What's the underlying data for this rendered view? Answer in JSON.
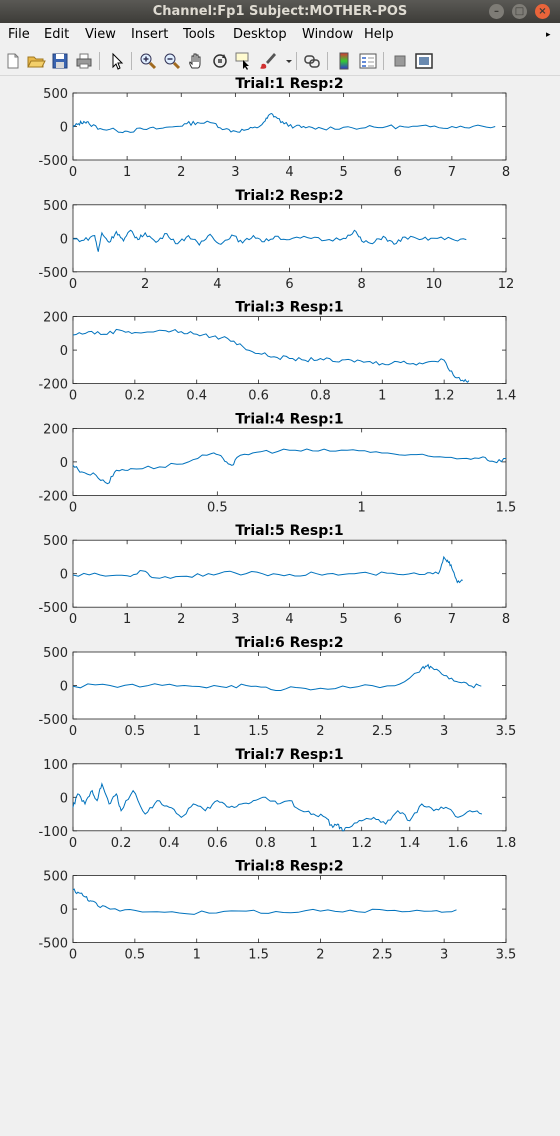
{
  "window": {
    "title": "Channel:Fp1 Subject:MOTHER-POS"
  },
  "menu": [
    "File",
    "Edit",
    "View",
    "Insert",
    "Tools",
    "Desktop",
    "Window",
    "Help"
  ],
  "toolbar_icons": [
    "new-figure-icon",
    "open-file-icon",
    "save-icon",
    "print-icon",
    "pointer-icon",
    "zoom-in-icon",
    "zoom-out-icon",
    "pan-hand-icon",
    "rotate-3d-icon",
    "data-cursor-icon",
    "brush-icon",
    "link-plot-icon",
    "colorbar-icon",
    "legend-icon",
    "hide-plot-tools-icon",
    "show-plot-tools-icon"
  ],
  "colors": {
    "line": "#0072bd",
    "axes_bg": "#ffffff",
    "figure_bg": "#f0f0f0"
  },
  "chart_data": [
    {
      "type": "line",
      "title": "Trial:1 Resp:2",
      "xlim": [
        0,
        8
      ],
      "ylim": [
        -500,
        500
      ],
      "xticks": [
        0,
        1,
        2,
        3,
        4,
        5,
        6,
        7,
        8
      ],
      "yticks": [
        500,
        0,
        -500
      ],
      "points": [
        [
          0,
          -10
        ],
        [
          0.1,
          40
        ],
        [
          0.2,
          75
        ],
        [
          0.3,
          40
        ],
        [
          0.5,
          -30
        ],
        [
          0.8,
          -60
        ],
        [
          1,
          -70
        ],
        [
          1.3,
          -40
        ],
        [
          1.6,
          -30
        ],
        [
          1.9,
          0
        ],
        [
          2.1,
          40
        ],
        [
          2.3,
          60
        ],
        [
          2.6,
          50
        ],
        [
          2.8,
          -40
        ],
        [
          3.0,
          -70
        ],
        [
          3.2,
          -50
        ],
        [
          3.4,
          -20
        ],
        [
          3.55,
          80
        ],
        [
          3.65,
          190
        ],
        [
          3.75,
          140
        ],
        [
          3.9,
          40
        ],
        [
          4.1,
          0
        ],
        [
          4.3,
          -20
        ],
        [
          4.6,
          -30
        ],
        [
          5.0,
          -10
        ],
        [
          5.4,
          -20
        ],
        [
          5.8,
          0
        ],
        [
          6.2,
          -10
        ],
        [
          6.6,
          -5
        ],
        [
          7.0,
          0
        ],
        [
          7.4,
          5
        ],
        [
          7.8,
          0
        ]
      ]
    },
    {
      "type": "line",
      "title": "Trial:2 Resp:2",
      "xlim": [
        0,
        12
      ],
      "ylim": [
        -500,
        500
      ],
      "xticks": [
        0,
        2,
        4,
        6,
        8,
        10,
        12
      ],
      "yticks": [
        500,
        0,
        -500
      ],
      "points": [
        [
          0,
          -10
        ],
        [
          0.3,
          -30
        ],
        [
          0.6,
          40
        ],
        [
          0.7,
          -200
        ],
        [
          0.8,
          80
        ],
        [
          1.0,
          -60
        ],
        [
          1.2,
          100
        ],
        [
          1.4,
          -40
        ],
        [
          1.6,
          120
        ],
        [
          1.8,
          -20
        ],
        [
          2.0,
          80
        ],
        [
          2.3,
          -60
        ],
        [
          2.6,
          70
        ],
        [
          2.9,
          -80
        ],
        [
          3.2,
          40
        ],
        [
          3.5,
          -100
        ],
        [
          3.8,
          60
        ],
        [
          4.1,
          -90
        ],
        [
          4.4,
          50
        ],
        [
          4.7,
          -70
        ],
        [
          5.0,
          40
        ],
        [
          5.3,
          -50
        ],
        [
          5.6,
          30
        ],
        [
          6.0,
          -20
        ],
        [
          6.5,
          10
        ],
        [
          7.0,
          -30
        ],
        [
          7.5,
          0
        ],
        [
          7.8,
          120
        ],
        [
          8.0,
          -40
        ],
        [
          8.3,
          -80
        ],
        [
          8.6,
          30
        ],
        [
          8.9,
          -90
        ],
        [
          9.2,
          20
        ],
        [
          9.6,
          -20
        ],
        [
          10.0,
          0
        ],
        [
          10.5,
          -10
        ],
        [
          10.9,
          -20
        ]
      ]
    },
    {
      "type": "line",
      "title": "Trial:3 Resp:1",
      "xlim": [
        0,
        1.4
      ],
      "ylim": [
        -200,
        200
      ],
      "xticks": [
        0,
        0.2,
        0.4,
        0.6,
        0.8,
        1,
        1.2,
        1.4
      ],
      "yticks": [
        200,
        0,
        -200
      ],
      "points": [
        [
          0,
          90
        ],
        [
          0.05,
          110
        ],
        [
          0.1,
          95
        ],
        [
          0.15,
          120
        ],
        [
          0.2,
          105
        ],
        [
          0.3,
          115
        ],
        [
          0.35,
          110
        ],
        [
          0.4,
          95
        ],
        [
          0.45,
          80
        ],
        [
          0.5,
          70
        ],
        [
          0.55,
          20
        ],
        [
          0.6,
          -20
        ],
        [
          0.65,
          -40
        ],
        [
          0.7,
          -50
        ],
        [
          0.75,
          -60
        ],
        [
          0.8,
          -50
        ],
        [
          0.85,
          -70
        ],
        [
          0.9,
          -60
        ],
        [
          0.95,
          -70
        ],
        [
          1.0,
          -80
        ],
        [
          1.05,
          -70
        ],
        [
          1.1,
          -80
        ],
        [
          1.15,
          -70
        ],
        [
          1.2,
          -60
        ],
        [
          1.23,
          -150
        ],
        [
          1.26,
          -180
        ],
        [
          1.28,
          -182
        ]
      ]
    },
    {
      "type": "line",
      "title": "Trial:4 Resp:1",
      "xlim": [
        0,
        1.5
      ],
      "ylim": [
        -200,
        200
      ],
      "xticks": [
        0,
        0.5,
        1,
        1.5
      ],
      "yticks": [
        200,
        0,
        -200
      ],
      "points": [
        [
          0,
          -20
        ],
        [
          0.03,
          -60
        ],
        [
          0.08,
          -80
        ],
        [
          0.12,
          -130
        ],
        [
          0.15,
          -50
        ],
        [
          0.2,
          -40
        ],
        [
          0.3,
          -30
        ],
        [
          0.4,
          0
        ],
        [
          0.48,
          50
        ],
        [
          0.52,
          20
        ],
        [
          0.55,
          -20
        ],
        [
          0.58,
          40
        ],
        [
          0.65,
          60
        ],
        [
          0.75,
          70
        ],
        [
          0.85,
          65
        ],
        [
          0.95,
          70
        ],
        [
          1.05,
          60
        ],
        [
          1.15,
          40
        ],
        [
          1.25,
          30
        ],
        [
          1.35,
          20
        ],
        [
          1.42,
          30
        ],
        [
          1.46,
          0
        ],
        [
          1.5,
          20
        ]
      ]
    },
    {
      "type": "line",
      "title": "Trial:5 Resp:1",
      "xlim": [
        0,
        8
      ],
      "ylim": [
        -500,
        500
      ],
      "xticks": [
        0,
        1,
        2,
        3,
        4,
        5,
        6,
        7,
        8
      ],
      "yticks": [
        500,
        0,
        -500
      ],
      "points": [
        [
          0,
          -20
        ],
        [
          0.5,
          -20
        ],
        [
          1.0,
          -30
        ],
        [
          1.3,
          40
        ],
        [
          1.5,
          -60
        ],
        [
          2.0,
          -40
        ],
        [
          2.5,
          0
        ],
        [
          3.0,
          10
        ],
        [
          3.5,
          0
        ],
        [
          4.0,
          -10
        ],
        [
          4.5,
          0
        ],
        [
          5.0,
          -10
        ],
        [
          5.5,
          0
        ],
        [
          6.0,
          -10
        ],
        [
          6.5,
          -10
        ],
        [
          6.75,
          0
        ],
        [
          6.85,
          250
        ],
        [
          6.92,
          200
        ],
        [
          7.0,
          80
        ],
        [
          7.1,
          -130
        ],
        [
          7.2,
          -100
        ]
      ]
    },
    {
      "type": "line",
      "title": "Trial:6 Resp:2",
      "xlim": [
        0,
        3.5
      ],
      "ylim": [
        -500,
        500
      ],
      "xticks": [
        0,
        0.5,
        1,
        1.5,
        2,
        2.5,
        3,
        3.5
      ],
      "yticks": [
        500,
        0,
        -500
      ],
      "points": [
        [
          0,
          -10
        ],
        [
          0.3,
          0
        ],
        [
          0.6,
          -5
        ],
        [
          0.9,
          0
        ],
        [
          1.2,
          -20
        ],
        [
          1.4,
          0
        ],
        [
          1.6,
          -60
        ],
        [
          1.8,
          -30
        ],
        [
          2.0,
          -40
        ],
        [
          2.3,
          -20
        ],
        [
          2.6,
          -5
        ],
        [
          2.8,
          200
        ],
        [
          2.85,
          290
        ],
        [
          2.9,
          270
        ],
        [
          3.0,
          150
        ],
        [
          3.1,
          60
        ],
        [
          3.2,
          0
        ],
        [
          3.3,
          -10
        ]
      ]
    },
    {
      "type": "line",
      "title": "Trial:7 Resp:1",
      "xlim": [
        0,
        1.8
      ],
      "ylim": [
        -100,
        100
      ],
      "xticks": [
        0,
        0.2,
        0.4,
        0.6,
        0.8,
        1,
        1.2,
        1.4,
        1.6,
        1.8
      ],
      "yticks": [
        100,
        0,
        -100
      ],
      "points": [
        [
          0,
          -30
        ],
        [
          0.02,
          10
        ],
        [
          0.05,
          -20
        ],
        [
          0.08,
          20
        ],
        [
          0.1,
          -10
        ],
        [
          0.12,
          40
        ],
        [
          0.15,
          -20
        ],
        [
          0.18,
          10
        ],
        [
          0.2,
          -40
        ],
        [
          0.25,
          20
        ],
        [
          0.3,
          -50
        ],
        [
          0.35,
          -10
        ],
        [
          0.4,
          -30
        ],
        [
          0.45,
          -60
        ],
        [
          0.5,
          -20
        ],
        [
          0.55,
          -40
        ],
        [
          0.6,
          -10
        ],
        [
          0.65,
          -30
        ],
        [
          0.7,
          -20
        ],
        [
          0.75,
          -10
        ],
        [
          0.8,
          0
        ],
        [
          0.85,
          -20
        ],
        [
          0.9,
          -10
        ],
        [
          0.95,
          -40
        ],
        [
          1.0,
          -50
        ],
        [
          1.05,
          -60
        ],
        [
          1.08,
          -90
        ],
        [
          1.1,
          -80
        ],
        [
          1.12,
          -100
        ],
        [
          1.15,
          -90
        ],
        [
          1.2,
          -70
        ],
        [
          1.25,
          -60
        ],
        [
          1.3,
          -80
        ],
        [
          1.35,
          -40
        ],
        [
          1.4,
          -70
        ],
        [
          1.45,
          -20
        ],
        [
          1.5,
          -40
        ],
        [
          1.55,
          -30
        ],
        [
          1.6,
          -60
        ],
        [
          1.65,
          -40
        ],
        [
          1.7,
          -50
        ]
      ]
    },
    {
      "type": "line",
      "title": "Trial:8 Resp:2",
      "xlim": [
        0,
        3.5
      ],
      "ylim": [
        -500,
        500
      ],
      "xticks": [
        0,
        0.5,
        1,
        1.5,
        2,
        2.5,
        3,
        3.5
      ],
      "yticks": [
        500,
        0,
        -500
      ],
      "points": [
        [
          0,
          290
        ],
        [
          0.05,
          240
        ],
        [
          0.1,
          180
        ],
        [
          0.15,
          120
        ],
        [
          0.2,
          50
        ],
        [
          0.3,
          0
        ],
        [
          0.5,
          -20
        ],
        [
          0.8,
          -40
        ],
        [
          1.1,
          -60
        ],
        [
          1.4,
          -30
        ],
        [
          1.7,
          -50
        ],
        [
          2.0,
          -30
        ],
        [
          2.3,
          -40
        ],
        [
          2.6,
          -20
        ],
        [
          2.9,
          -30
        ],
        [
          3.1,
          -10
        ]
      ]
    }
  ]
}
